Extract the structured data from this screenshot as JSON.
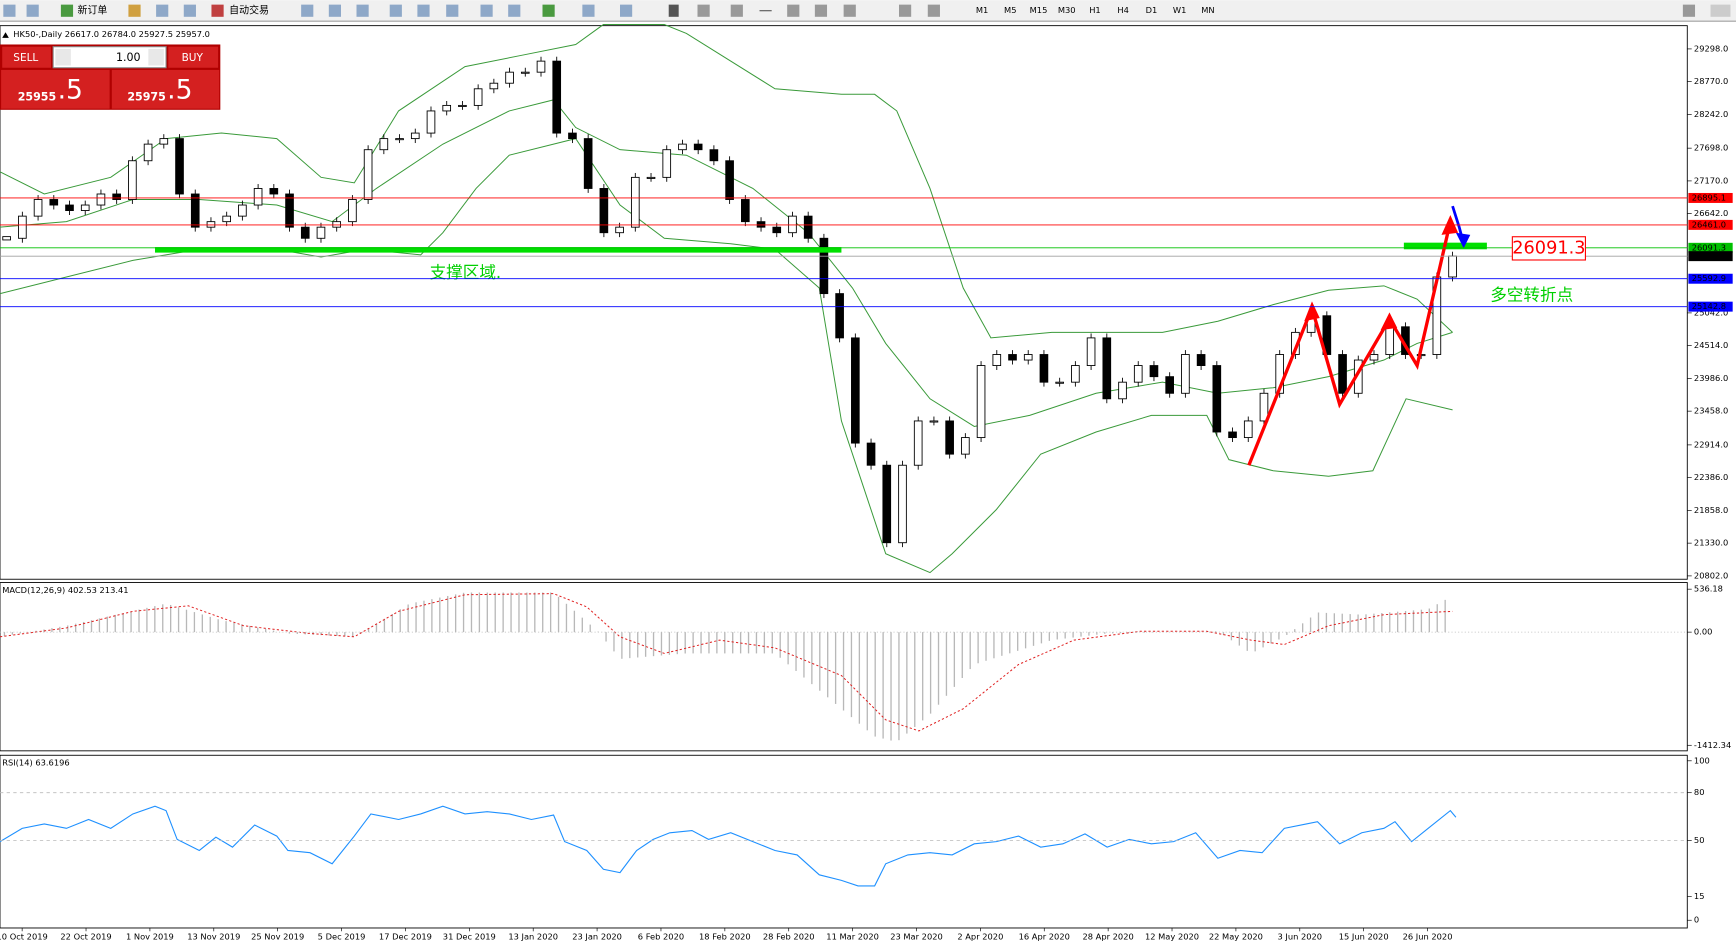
{
  "toolbar": {
    "items": [
      "新订单",
      "自动交易"
    ],
    "timeframes": [
      "M1",
      "M5",
      "M15",
      "M30",
      "H1",
      "H4",
      "D1",
      "W1",
      "MN"
    ]
  },
  "chart_header": "HK50-,Daily  26617.0 26784.0 25927.5 25957.0",
  "trade_panel": {
    "sell": "SELL",
    "buy": "BUY",
    "volume": "1.00",
    "bid_main": "25955",
    "bid_frac": ".5",
    "ask_main": "25975",
    "ask_frac": ".5"
  },
  "chart_data": {
    "type": "candlestick",
    "values": [
      26245,
      26602,
      26870,
      26781,
      26692,
      26781,
      26959,
      26870,
      27495,
      27763,
      27852,
      26959,
      26424,
      26513,
      26602,
      26781,
      27048,
      26959,
      26424,
      26245,
      26424,
      26513,
      26870,
      27673,
      27852,
      27852,
      27941,
      28298,
      28387,
      28387,
      28655,
      28745,
      28923,
      28923,
      29101,
      27941,
      27852,
      27048,
      26335,
      26424,
      27227,
      27227,
      27673,
      27763,
      27673,
      27495,
      26870,
      26513,
      26424,
      26335,
      26602,
      26245,
      25353,
      24639,
      22943,
      22586,
      21337,
      22586,
      23300,
      23300,
      22765,
      23032,
      24193,
      24371,
      24282,
      24371,
      23925,
      23925,
      24193,
      24639,
      23657,
      23925,
      24193,
      24014,
      23746,
      24371,
      24193,
      23122,
      23032,
      23300,
      23746,
      24371,
      24728,
      24996,
      24371,
      23746,
      24282,
      24371,
      24818,
      24371,
      24371,
      25621,
      25957
    ],
    "ylim": [
      20766,
      29655
    ],
    "yticks": [
      {
        "value": 29298,
        "label": "29298.0"
      },
      {
        "value": 28770,
        "label": "28770.0"
      },
      {
        "value": 28242,
        "label": "28242.0"
      },
      {
        "value": 27698,
        "label": "27698.0"
      },
      {
        "value": 27170,
        "label": "27170.0"
      },
      {
        "value": 26642,
        "label": "26642.0"
      },
      {
        "value": 25042,
        "label": "25042.0"
      },
      {
        "value": 24514,
        "label": "24514.0"
      },
      {
        "value": 23986,
        "label": "23986.0"
      },
      {
        "value": 23458,
        "label": "23458.0"
      },
      {
        "value": 22914,
        "label": "22914.0"
      },
      {
        "value": 22386,
        "label": "22386.0"
      },
      {
        "value": 21858,
        "label": "21858.0"
      },
      {
        "value": 21330,
        "label": "21330.0"
      },
      {
        "value": 20802,
        "label": "20802.0"
      }
    ],
    "lines": [
      {
        "value": 26895.1,
        "label": "26895.1",
        "color": "#ff0000"
      },
      {
        "value": 26461.0,
        "label": "26461.0",
        "color": "#ff0000"
      },
      {
        "value": 26091.3,
        "label": "26091.3",
        "color": "#00c000"
      },
      {
        "value": 25957.0,
        "label": "25957.0",
        "color": "#000000"
      },
      {
        "value": 25592.9,
        "label": "25592.9",
        "color": "#0000ff"
      },
      {
        "value": 25142.8,
        "label": "25142.8",
        "color": "#0000ff"
      }
    ],
    "box_label": {
      "value": 26091.3,
      "label": "26091.3"
    },
    "annotations": [
      "支撑区域.",
      "多空转折点"
    ],
    "x_labels": [
      "10 Oct 2019",
      "22 Oct 2019",
      "1 Nov 2019",
      "13 Nov 2019",
      "25 Nov 2019",
      "5 Dec 2019",
      "17 Dec 2019",
      "31 Dec 2019",
      "13 Jan 2020",
      "23 Jan 2020",
      "6 Feb 2020",
      "18 Feb 2020",
      "28 Feb 2020",
      "11 Mar 2020",
      "23 Mar 2020",
      "2 Apr 2020",
      "16 Apr 2020",
      "28 Apr 2020",
      "12 May 2020",
      "22 May 2020",
      "3 Jun 2020",
      "15 Jun 2020",
      "26 Jun 2020"
    ]
  },
  "macd": {
    "title": "MACD(12,26,9) 402.53 213.41",
    "ylim": [
      -1454,
      605
    ],
    "yticks": [
      {
        "value": 536.18,
        "label": "536.18"
      },
      {
        "value": 0,
        "label": "0.00"
      },
      {
        "value": -1412.34,
        "label": "-1412.34"
      }
    ]
  },
  "rsi": {
    "title": "RSI(14) 63.6196",
    "ylim": [
      0,
      100
    ],
    "yticks": [
      100,
      80,
      50,
      15,
      0
    ],
    "levels": [
      80,
      50
    ]
  }
}
